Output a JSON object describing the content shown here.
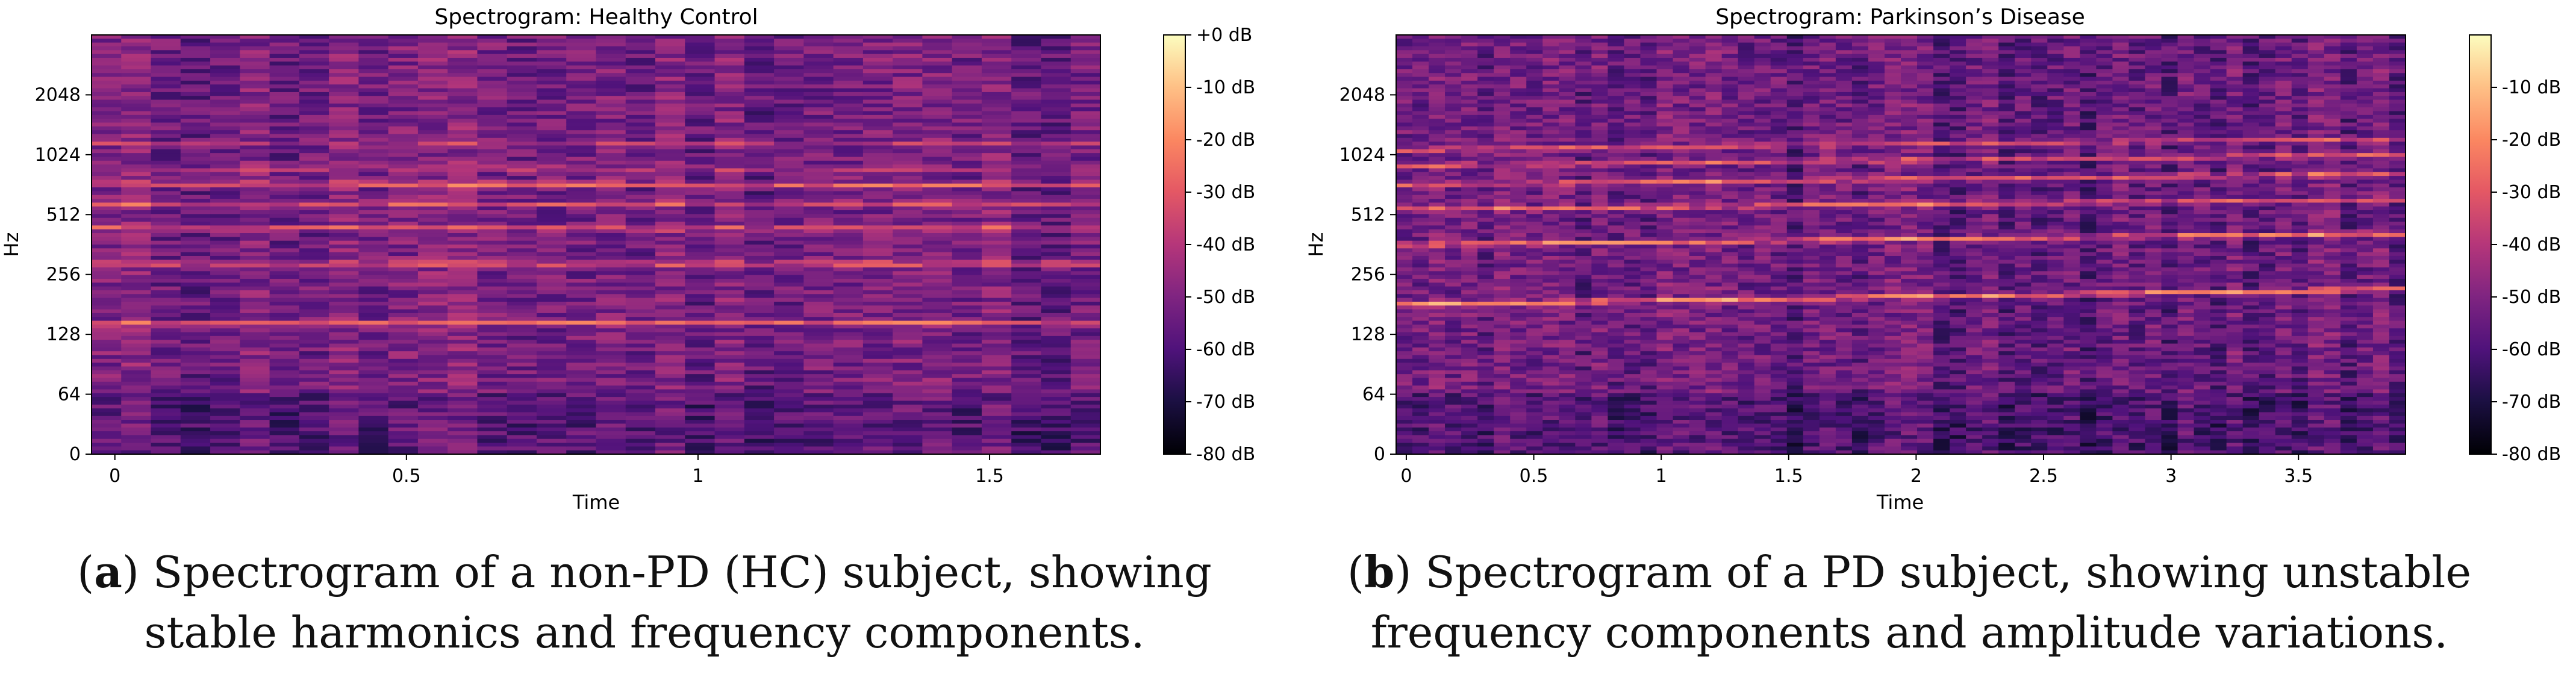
{
  "chart_data": [
    {
      "type": "heatmap",
      "title": "Spectrogram: Healthy Control",
      "xlabel": "Time",
      "ylabel": "Hz",
      "xlim": [
        -0.04,
        1.69
      ],
      "xticks": [
        0,
        0.5,
        1,
        1.5
      ],
      "xtick_labels": [
        "0",
        "0.5",
        "1",
        "1.5"
      ],
      "yticks": [
        0,
        64,
        128,
        256,
        512,
        1024,
        2048
      ],
      "ytick_labels": [
        "0",
        "64",
        "128",
        "256",
        "512",
        "1024",
        "2048"
      ],
      "y_scale": "symlog",
      "ylim": [
        0,
        4096
      ],
      "colorbar": {
        "min": -80,
        "max": 0,
        "ticks": [
          0,
          -10,
          -20,
          -30,
          -40,
          -50,
          -60,
          -70,
          -80
        ],
        "labels": [
          "+0 dB",
          "-10 dB",
          "-20 dB",
          "-30 dB",
          "-40 dB",
          "-50 dB",
          "-60 dB",
          "-70 dB",
          "-80 dB"
        ]
      },
      "harmonics": [
        {
          "freq_start": 145,
          "freq_end": 145,
          "level_db": -22
        },
        {
          "freq_start": 290,
          "freq_end": 290,
          "level_db": -22
        },
        {
          "freq_start": 435,
          "freq_end": 435,
          "level_db": -26
        },
        {
          "freq_start": 580,
          "freq_end": 580,
          "level_db": -30
        },
        {
          "freq_start": 730,
          "freq_end": 725,
          "level_db": -20
        },
        {
          "freq_start": 870,
          "freq_end": 870,
          "level_db": -36
        },
        {
          "freq_start": 1160,
          "freq_end": 1160,
          "level_db": -40
        }
      ],
      "background_db": -52,
      "caption_letter": "a",
      "caption_text": "Spectrogram of a non-PD (HC) subject, showing stable harmonics and frequency components."
    },
    {
      "type": "heatmap",
      "title": "Spectrogram: Parkinson’s Disease",
      "xlabel": "Time",
      "ylabel": "Hz",
      "xlim": [
        -0.04,
        3.92
      ],
      "xticks": [
        0,
        0.5,
        1,
        1.5,
        2,
        2.5,
        3,
        3.5
      ],
      "xtick_labels": [
        "0",
        "0.5",
        "1",
        "1.5",
        "2",
        "2.5",
        "3",
        "3.5"
      ],
      "yticks": [
        0,
        64,
        128,
        256,
        512,
        1024,
        2048
      ],
      "ytick_labels": [
        "0",
        "64",
        "128",
        "256",
        "512",
        "1024",
        "2048"
      ],
      "y_scale": "symlog",
      "ylim": [
        0,
        4096
      ],
      "colorbar": {
        "min": -80,
        "max": 0,
        "ticks": [
          -10,
          -20,
          -30,
          -40,
          -50,
          -60,
          -70,
          -80
        ],
        "labels": [
          "-10 dB",
          "-20 dB",
          "-30 dB",
          "-40 dB",
          "-50 dB",
          "-60 dB",
          "-70 dB",
          "-80 dB"
        ]
      },
      "harmonics": [
        {
          "freq_start": 180,
          "freq_end": 215,
          "level_db": -18
        },
        {
          "freq_start": 360,
          "freq_end": 410,
          "level_db": -22
        },
        {
          "freq_start": 540,
          "freq_end": 610,
          "level_db": -26
        },
        {
          "freq_start": 720,
          "freq_end": 820,
          "level_db": -28
        },
        {
          "freq_start": 900,
          "freq_end": 1020,
          "level_db": -30
        },
        {
          "freq_start": 1080,
          "freq_end": 1230,
          "level_db": -32
        }
      ],
      "background_db": -55,
      "caption_letter": "b",
      "caption_text": "Spectrogram of a PD subject, showing unstable frequency components and amplitude variations."
    }
  ]
}
